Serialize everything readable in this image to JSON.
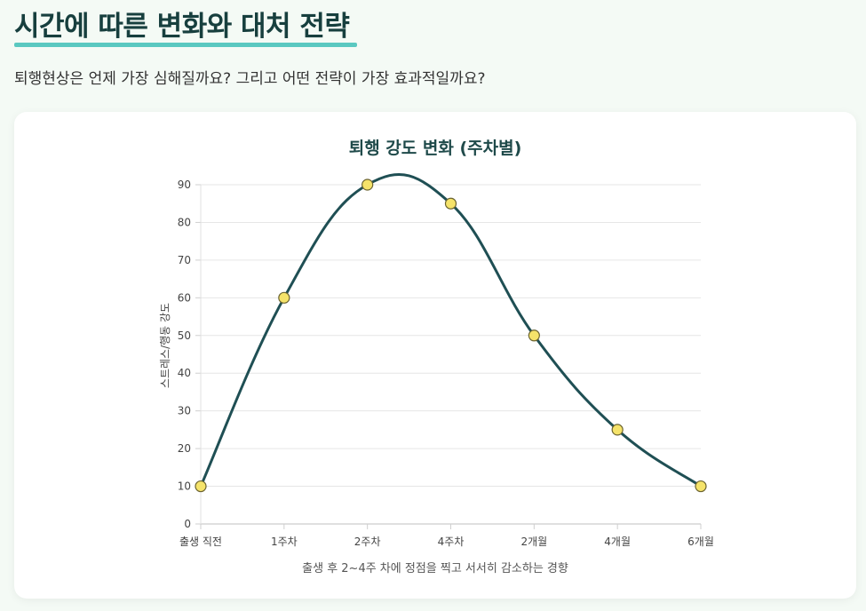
{
  "header": {
    "title": "시간에 따른 변화와 대처 전략",
    "subtitle": "퇴행현상은 언제 가장 심해질까요? 그리고 어떤 전략이 가장 효과적일까요?"
  },
  "colors": {
    "accent": "#5ac8c0",
    "line": "#1f4f54",
    "point_fill": "#f5e36a",
    "point_stroke": "#6b6330"
  },
  "chart_data": {
    "type": "line",
    "title": "퇴행 강도 변화 (주차별)",
    "categories": [
      "출생 직전",
      "1주차",
      "2주차",
      "4주차",
      "2개월",
      "4개월",
      "6개월"
    ],
    "series": [
      {
        "name": "스트레스/행동 강도",
        "values": [
          10,
          60,
          90,
          85,
          50,
          25,
          10
        ]
      }
    ],
    "xlabel": "출생 후 2~4주 차에 정점을 찍고 서서히 감소하는 경향",
    "ylabel": "스트레스/행동 강도",
    "ylim": [
      0,
      90
    ],
    "yticks": [
      0,
      10,
      20,
      30,
      40,
      50,
      60,
      70,
      80,
      90
    ],
    "grid": true
  }
}
